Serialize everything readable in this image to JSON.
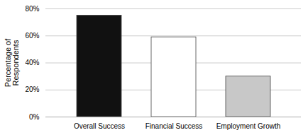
{
  "chart_data": {
    "type": "bar",
    "categories": [
      "Overall Success",
      "Financial Success",
      "Employment Growth"
    ],
    "values": [
      0.75,
      0.59,
      0.3
    ],
    "colors": [
      "#111111",
      "#ffffff",
      "#c8c8c8"
    ],
    "ylabel": "Percentage of\nRespondents",
    "ylim": [
      0,
      0.8
    ],
    "yticks": [
      {
        "value": 0.0,
        "label": "0%"
      },
      {
        "value": 0.2,
        "label": "20%"
      },
      {
        "value": 0.4,
        "label": "40%"
      },
      {
        "value": 0.6,
        "label": "60%"
      },
      {
        "value": 0.8,
        "label": "80%"
      }
    ],
    "grid": true
  }
}
